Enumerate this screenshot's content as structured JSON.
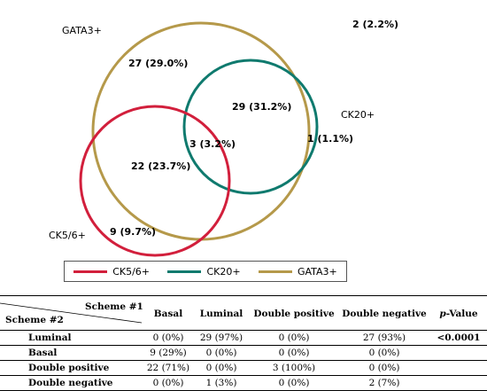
{
  "venn": {
    "sets": [
      {
        "name": "GATA3+",
        "color": "#b5994a"
      },
      {
        "name": "CK20+",
        "color": "#0f7a6e"
      },
      {
        "name": "CK5/6+",
        "color": "#d21f3c"
      }
    ],
    "regions": {
      "gata3_only": "27 (29.0%)",
      "gata3_ck20": "29 (31.2%)",
      "ck20_only": "1 (1.1%)",
      "all_three": "3 (3.2%)",
      "gata3_ck56": "22 (23.7%)",
      "ck56_only": "9 (9.7%)",
      "none": "2 (2.2%)"
    }
  },
  "legend": [
    {
      "label": "CK5/6+",
      "color": "#d21f3c"
    },
    {
      "label": "CK20+",
      "color": "#0f7a6e"
    },
    {
      "label": "GATA3+",
      "color": "#b5994a"
    }
  ],
  "table": {
    "header_col": "Scheme #1",
    "header_row": "Scheme #2",
    "columns": [
      "Basal",
      "Luminal",
      "Double positive",
      "Double negative"
    ],
    "p_label_italic": "p",
    "p_label_rest": "-Value",
    "rows": [
      {
        "label": "Luminal",
        "cells": [
          "0 (0%)",
          "29 (97%)",
          "0 (0%)",
          "27 (93%)"
        ],
        "p": "<0.0001"
      },
      {
        "label": "Basal",
        "cells": [
          "9 (29%)",
          "0 (0%)",
          "0 (0%)",
          "0 (0%)"
        ],
        "p": ""
      },
      {
        "label": "Double positive",
        "cells": [
          "22 (71%)",
          "0 (0%)",
          "3 (100%)",
          "0 (0%)"
        ],
        "p": ""
      },
      {
        "label": "Double negative",
        "cells": [
          "0 (0%)",
          "1 (3%)",
          "0 (0%)",
          "2 (7%)"
        ],
        "p": ""
      }
    ]
  }
}
